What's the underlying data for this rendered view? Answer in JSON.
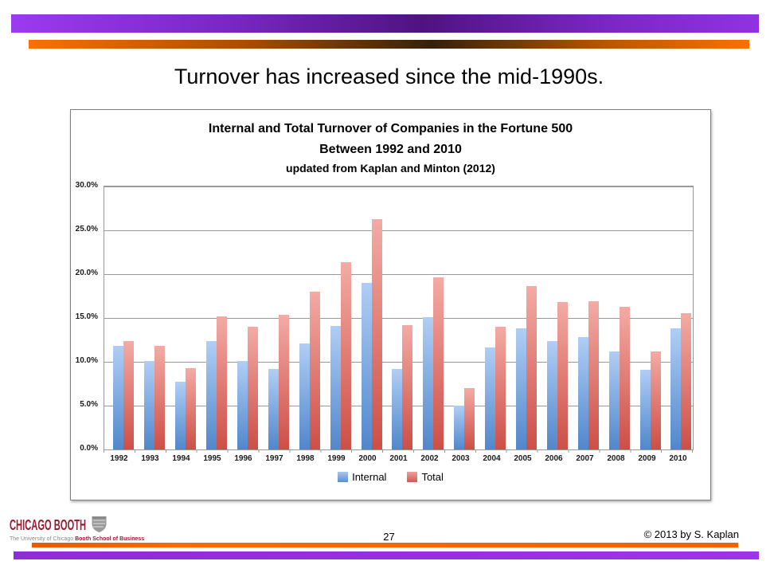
{
  "slide": {
    "title": "Turnover has increased since the mid-1990s.",
    "page_number": "27",
    "copyright": "© 2013 by S. Kaplan"
  },
  "footer_logo": {
    "brand": "CHICAGO BOOTH",
    "crest_icon": "booth-crest-icon",
    "tagline_prefix": "The University of Chicago ",
    "tagline_suffix": "Booth School of Business",
    "brand_color": "#9B1B30"
  },
  "theme_colors": {
    "top_bar_purple": "#8B2FD0",
    "top_bar_orange": "#F97100",
    "bottom_bar_orange": "#F26300",
    "bottom_bar_purple": "#9934E8",
    "internal_bar_blue": "#5C8FCE",
    "total_bar_red": "#D95F57",
    "gridline_gray": "#999999"
  },
  "chart_data": {
    "type": "bar",
    "title_lines": [
      "Internal and Total Turnover of Companies in the Fortune 500",
      "Between 1992 and 2010",
      "updated from Kaplan and Minton (2012)"
    ],
    "categories": [
      "1992",
      "1993",
      "1994",
      "1995",
      "1996",
      "1997",
      "1998",
      "1999",
      "2000",
      "2001",
      "2002",
      "2003",
      "2004",
      "2005",
      "2006",
      "2007",
      "2008",
      "2009",
      "2010"
    ],
    "series": [
      {
        "name": "Internal",
        "color_top": "#b0cef5",
        "color_bottom": "#5187cb",
        "values": [
          11.8,
          10.1,
          7.7,
          12.4,
          10.1,
          9.2,
          12.1,
          14.1,
          19.0,
          9.2,
          15.1,
          5.0,
          11.6,
          13.8,
          12.4,
          12.8,
          11.2,
          9.1,
          13.8
        ]
      },
      {
        "name": "Total",
        "color_top": "#f3aba4",
        "color_bottom": "#cc4f47",
        "values": [
          12.4,
          11.8,
          9.3,
          15.2,
          14.0,
          15.4,
          18.0,
          21.4,
          26.3,
          14.2,
          19.6,
          7.0,
          14.0,
          18.6,
          16.8,
          16.9,
          16.3,
          11.2,
          15.5
        ]
      }
    ],
    "ylim": [
      0,
      30
    ],
    "ytick_step": 5,
    "ytick_labels": [
      "30.0%",
      "25.0%",
      "20.0%",
      "15.0%",
      "10.0%",
      "5.0%",
      "0.0%"
    ],
    "xlabel": "",
    "ylabel": "",
    "grid": true,
    "legend_position": "bottom"
  }
}
